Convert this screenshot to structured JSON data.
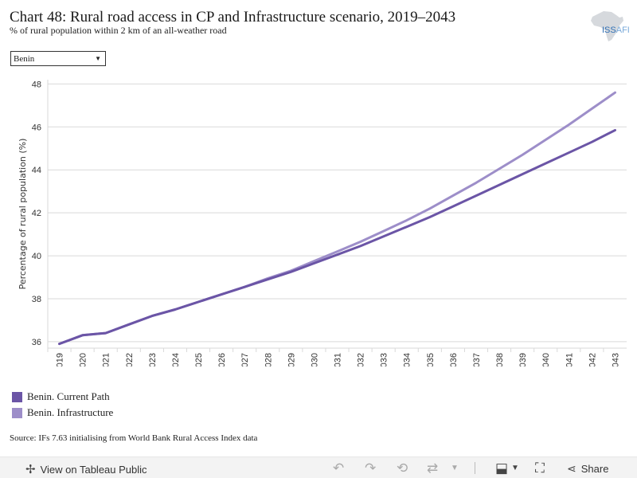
{
  "header": {
    "title": "Chart 48: Rural road access in CP and Infrastructure scenario, 2019–2043",
    "subtitle": "% of rural population within 2 km of an all-weather road"
  },
  "logo": {
    "text": "ISS",
    "suffix": "AFI",
    "icon": "africa-map-icon"
  },
  "filter": {
    "selected": "Benin",
    "icon": "dropdown-arrow-icon"
  },
  "legend": [
    {
      "label": "Benin. Current Path",
      "color": "#6b55a6"
    },
    {
      "label": "Benin. Infrastructure",
      "color": "#9d8ec9"
    }
  ],
  "source": "Source: IFs 7.63 initialising from World Bank Rural Access Index data",
  "footer": {
    "view_label": "View on Tableau Public",
    "share_label": "Share",
    "icons": [
      "tableau-icon",
      "undo-icon",
      "redo-icon",
      "revert-icon",
      "refresh-icon",
      "download-icon",
      "fullscreen-icon",
      "share-icon"
    ]
  },
  "chart_data": {
    "type": "line",
    "title": "Chart 48: Rural road access in CP and Infrastructure scenario, 2019–2043",
    "subtitle": "% of rural population within 2 km of an all-weather road",
    "xlabel": "",
    "ylabel": "Percentage of rural population (%)",
    "ylim": [
      35.7,
      48.2
    ],
    "yticks": [
      36,
      38,
      40,
      42,
      44,
      46,
      48
    ],
    "grid": true,
    "legend_position": "bottom-left",
    "x": [
      2019,
      2020,
      2021,
      2022,
      2023,
      2024,
      2025,
      2026,
      2027,
      2028,
      2029,
      2030,
      2031,
      2032,
      2033,
      2034,
      2035,
      2036,
      2037,
      2038,
      2039,
      2040,
      2041,
      2042,
      2043
    ],
    "series": [
      {
        "name": "Benin. Current Path",
        "color": "#6b55a6",
        "values": [
          35.9,
          36.3,
          36.4,
          36.8,
          37.2,
          37.5,
          37.85,
          38.2,
          38.55,
          38.9,
          39.25,
          39.65,
          40.05,
          40.45,
          40.9,
          41.35,
          41.8,
          42.3,
          42.8,
          43.3,
          43.8,
          44.3,
          44.8,
          45.3,
          45.85
        ]
      },
      {
        "name": "Benin. Infrastructure",
        "color": "#9d8ec9",
        "values": [
          35.9,
          36.3,
          36.4,
          36.8,
          37.2,
          37.5,
          37.85,
          38.2,
          38.55,
          38.95,
          39.3,
          39.75,
          40.2,
          40.65,
          41.15,
          41.65,
          42.2,
          42.8,
          43.4,
          44.05,
          44.7,
          45.4,
          46.1,
          46.85,
          47.6
        ]
      }
    ]
  }
}
